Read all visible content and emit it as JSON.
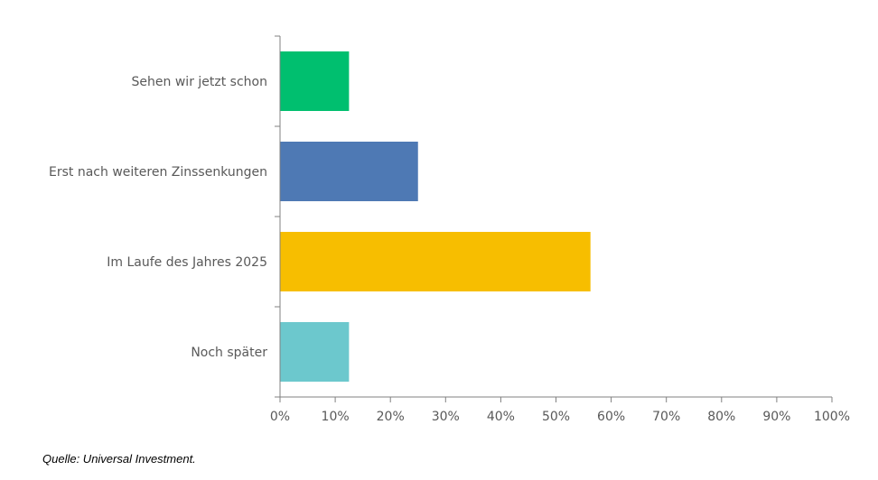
{
  "chart_data": {
    "type": "bar",
    "orientation": "horizontal",
    "title": "",
    "xlabel": "",
    "ylabel": "",
    "categories": [
      "Sehen wir jetzt schon",
      "Erst nach weiteren Zinssenkungen",
      "Im Laufe des Jahres 2025",
      "Noch später"
    ],
    "values": [
      12.5,
      25,
      56.25,
      12.5
    ],
    "colors": [
      "#00BF6F",
      "#4E79B4",
      "#F7BE00",
      "#6CC8CD"
    ],
    "xlim": [
      0,
      100
    ],
    "xticks": [
      0,
      10,
      20,
      30,
      40,
      50,
      60,
      70,
      80,
      90,
      100
    ],
    "xtick_labels": [
      "0%",
      "10%",
      "20%",
      "30%",
      "40%",
      "50%",
      "60%",
      "70%",
      "80%",
      "90%",
      "100%"
    ],
    "grid": false,
    "legend": "none"
  },
  "source": "Quelle: Universal Investment."
}
